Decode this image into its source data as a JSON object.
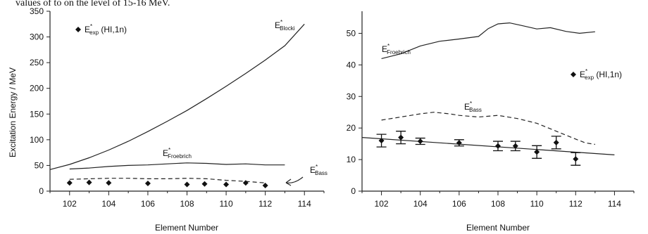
{
  "header_text": "values of to on the level of 15-16 MeV.",
  "chart_data": [
    {
      "type": "line",
      "xlabel": "Element Number",
      "ylabel": "Excitation Energy  / MeV",
      "xlim": [
        101,
        115
      ],
      "ylim": [
        0,
        350
      ],
      "xticks": [
        102,
        104,
        106,
        108,
        110,
        112,
        114
      ],
      "yticks": [
        0,
        50,
        100,
        150,
        200,
        250,
        300,
        350
      ],
      "grid": false,
      "series": [
        {
          "label": "E*Blocki",
          "style": "solid",
          "x": [
            101,
            102,
            103,
            104,
            105,
            106,
            107,
            108,
            109,
            110,
            111,
            112,
            113,
            114
          ],
          "y": [
            42,
            52,
            65,
            80,
            97,
            116,
            136,
            157,
            180,
            204,
            229,
            255,
            283,
            325
          ]
        },
        {
          "label": "E*Froebrich",
          "style": "solid",
          "x": [
            102,
            103,
            104,
            105,
            106,
            107,
            108,
            109,
            110,
            111,
            112,
            113
          ],
          "y": [
            43,
            45,
            48,
            50,
            51,
            53,
            55,
            54,
            52,
            53,
            51,
            51
          ]
        },
        {
          "label": "E*Bass",
          "style": "dashed",
          "x": [
            102,
            103,
            104,
            105,
            106,
            107,
            108,
            109,
            110,
            111,
            112
          ],
          "y": [
            23,
            24,
            25,
            25,
            24,
            24,
            25,
            24,
            21,
            19,
            16
          ]
        },
        {
          "label": "E*exp (HI,1n)",
          "style": "points",
          "x": [
            102,
            103,
            104,
            106,
            108,
            108.9,
            110,
            111,
            112
          ],
          "y": [
            16,
            17,
            16,
            15,
            13,
            14,
            13,
            16,
            11
          ]
        }
      ],
      "annotations": [
        {
          "base": "E",
          "sup": "*",
          "sub": "exp",
          "suffix": " (HI,1n)"
        },
        {
          "base": "E",
          "sup": "*",
          "sub": "Blocki",
          "suffix": ""
        },
        {
          "base": "E",
          "sup": "*",
          "sub": "Froebrich",
          "suffix": ""
        },
        {
          "base": "E",
          "sup": "*",
          "sub": "Bass",
          "suffix": ""
        }
      ]
    },
    {
      "type": "line",
      "xlabel": "Element Number",
      "ylabel": "",
      "xlim": [
        101,
        115
      ],
      "ylim": [
        0,
        57
      ],
      "xticks": [
        102,
        104,
        106,
        108,
        110,
        112,
        114
      ],
      "yticks": [
        0,
        10,
        20,
        30,
        40,
        50
      ],
      "grid": false,
      "series": [
        {
          "label": "E*Froebrich",
          "style": "solid",
          "x": [
            102,
            103,
            104,
            105,
            106,
            107,
            107.5,
            108,
            108.6,
            109.2,
            110,
            110.7,
            111.5,
            112.2,
            113
          ],
          "y": [
            42,
            43.5,
            46,
            47.5,
            48.2,
            49,
            51.5,
            53,
            53.3,
            52.5,
            51.4,
            51.8,
            50.6,
            50,
            50.5
          ]
        },
        {
          "label": "E*Bass",
          "style": "dashed",
          "x": [
            102,
            103,
            104,
            104.7,
            105.5,
            106,
            107,
            108,
            109,
            110,
            111,
            112,
            112.5,
            113
          ],
          "y": [
            22.5,
            23.5,
            24.5,
            25,
            24.5,
            24,
            23.5,
            24,
            23,
            21.5,
            19,
            16.5,
            15.3,
            14.8
          ]
        },
        {
          "label": "fit",
          "style": "solid",
          "x": [
            101,
            114
          ],
          "y": [
            17,
            11.5
          ]
        },
        {
          "label": "E*exp (HI,1n)",
          "style": "points",
          "x": [
            102,
            103,
            104,
            106,
            108,
            108.9,
            110,
            111,
            112
          ],
          "y": [
            16,
            17,
            15.8,
            15.3,
            14.3,
            14.3,
            12.4,
            15.4,
            10.2
          ],
          "err": [
            2,
            2,
            1,
            1,
            1.5,
            1.5,
            2,
            2,
            2
          ]
        }
      ],
      "annotations": [
        {
          "base": "E",
          "sup": "*",
          "sub": "Froebrich",
          "suffix": ""
        },
        {
          "base": "E",
          "sup": "*",
          "sub": "exp",
          "suffix": " (HI,1n)"
        },
        {
          "base": "E",
          "sup": "*",
          "sub": "Bass",
          "suffix": ""
        }
      ]
    }
  ]
}
